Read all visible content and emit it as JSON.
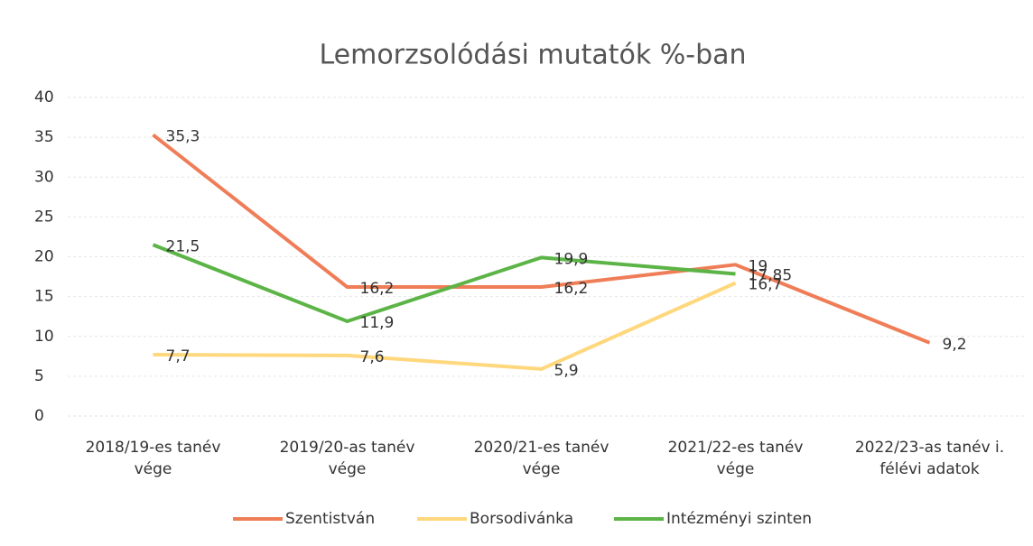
{
  "chart_data": {
    "type": "line",
    "title": "Lemorzsolódási mutatók %-ban",
    "categories": [
      "2018/19-es tanév vége",
      "2019/20-as tanév vége",
      "2020/21-es tanév vége",
      "2021/22-es tanév vége",
      "2022/23-as tanév i. félévi adatok"
    ],
    "series": [
      {
        "name": "Szentistván",
        "color": "#ef7d57",
        "values": [
          35.3,
          16.2,
          16.2,
          19,
          9.2
        ],
        "value_labels": [
          "35,3",
          "16,2",
          "16,2",
          "19",
          "9,2"
        ]
      },
      {
        "name": "Borsodivánka",
        "color": "#ffd77c",
        "values": [
          7.7,
          7.6,
          5.9,
          16.7,
          null
        ],
        "value_labels": [
          "7,7",
          "7,6",
          "5,9",
          "16,7",
          null
        ]
      },
      {
        "name": "Intézményi szinten",
        "color": "#5cb447",
        "values": [
          21.5,
          11.9,
          19.9,
          17.85,
          null
        ],
        "value_labels": [
          "21,5",
          "11,9",
          "19,9",
          "17,85",
          null
        ]
      }
    ],
    "ylim": [
      0,
      40
    ],
    "yticks": [
      0,
      5,
      10,
      15,
      20,
      25,
      30,
      35,
      40
    ],
    "grid": true,
    "legend": "bottom"
  }
}
